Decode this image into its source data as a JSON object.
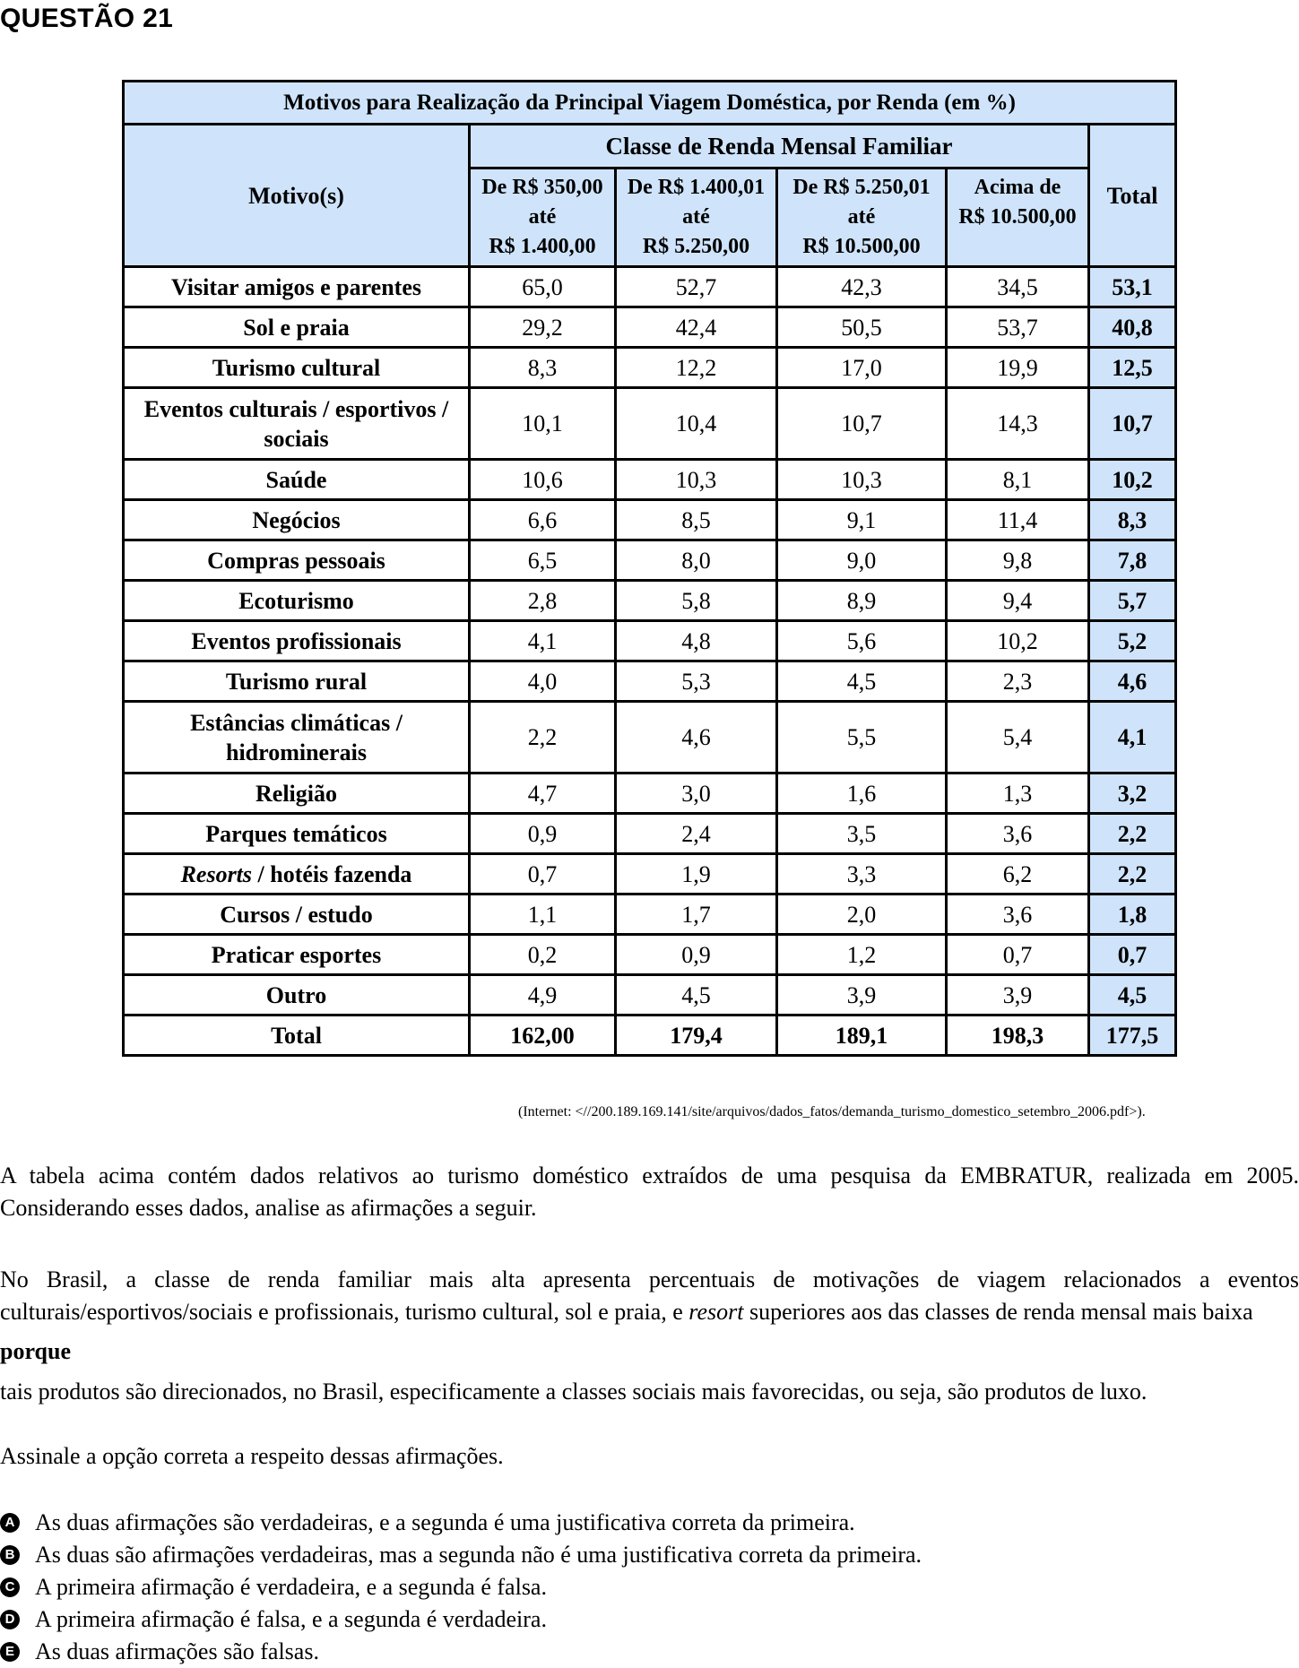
{
  "question_title": "QUESTÃO 21",
  "table": {
    "caption": "Motivos para Realização da Principal Viagem Doméstica, por Renda (em %)",
    "motive_header": "Motivo(s)",
    "group_header": "Classe de Renda Mensal Familiar",
    "total_header": "Total",
    "columns": [
      [
        "De R$ 350,00",
        "até",
        "R$ 1.400,00"
      ],
      [
        "De R$ 1.400,01",
        "até",
        "R$ 5.250,00"
      ],
      [
        "De R$ 5.250,01",
        "até",
        "R$ 10.500,00"
      ],
      [
        "Acima de",
        "R$ 10.500,00"
      ]
    ],
    "rows": [
      {
        "motive": "Visitar amigos e parentes",
        "values": [
          "65,0",
          "52,7",
          "42,3",
          "34,5"
        ],
        "total": "53,1"
      },
      {
        "motive": "Sol e praia",
        "values": [
          "29,2",
          "42,4",
          "50,5",
          "53,7"
        ],
        "total": "40,8"
      },
      {
        "motive": "Turismo cultural",
        "values": [
          "8,3",
          "12,2",
          "17,0",
          "19,9"
        ],
        "total": "12,5"
      },
      {
        "motive": "Eventos culturais / esportivos / sociais",
        "values": [
          "10,1",
          "10,4",
          "10,7",
          "14,3"
        ],
        "total": "10,7"
      },
      {
        "motive": "Saúde",
        "values": [
          "10,6",
          "10,3",
          "10,3",
          "8,1"
        ],
        "total": "10,2"
      },
      {
        "motive": "Negócios",
        "values": [
          "6,6",
          "8,5",
          "9,1",
          "11,4"
        ],
        "total": "8,3"
      },
      {
        "motive": "Compras pessoais",
        "values": [
          "6,5",
          "8,0",
          "9,0",
          "9,8"
        ],
        "total": "7,8"
      },
      {
        "motive": "Ecoturismo",
        "values": [
          "2,8",
          "5,8",
          "8,9",
          "9,4"
        ],
        "total": "5,7"
      },
      {
        "motive": "Eventos profissionais",
        "values": [
          "4,1",
          "4,8",
          "5,6",
          "10,2"
        ],
        "total": "5,2"
      },
      {
        "motive": "Turismo rural",
        "values": [
          "4,0",
          "5,3",
          "4,5",
          "2,3"
        ],
        "total": "4,6"
      },
      {
        "motive": "Estâncias climáticas / hidrominerais",
        "values": [
          "2,2",
          "4,6",
          "5,5",
          "5,4"
        ],
        "total": "4,1"
      },
      {
        "motive": "Religião",
        "values": [
          "4,7",
          "3,0",
          "1,6",
          "1,3"
        ],
        "total": "3,2"
      },
      {
        "motive": "Parques temáticos",
        "values": [
          "0,9",
          "2,4",
          "3,5",
          "3,6"
        ],
        "total": "2,2"
      },
      {
        "motive": "Resorts / hotéis fazenda",
        "values": [
          "0,7",
          "1,9",
          "3,3",
          "6,2"
        ],
        "total": "2,2"
      },
      {
        "motive": "Cursos / estudo",
        "values": [
          "1,1",
          "1,7",
          "2,0",
          "3,6"
        ],
        "total": "1,8"
      },
      {
        "motive": "Praticar esportes",
        "values": [
          "0,2",
          "0,9",
          "1,2",
          "0,7"
        ],
        "total": "0,7"
      },
      {
        "motive": "Outro",
        "values": [
          "4,9",
          "4,5",
          "3,9",
          "3,9"
        ],
        "total": "4,5"
      },
      {
        "motive": "Total",
        "values": [
          "162,00",
          "179,4",
          "189,1",
          "198,3"
        ],
        "total": "177,5"
      }
    ],
    "source": "(Internet: <//200.189.169.141/site/arquivos/dados_fatos/demanda_turismo_domestico_setembro_2006.pdf>)."
  },
  "intro": "A tabela acima contém dados relativos ao turismo doméstico extraídos de uma pesquisa da EMBRATUR, realizada em 2005. Considerando esses dados, analise as afirmações a seguir.",
  "statement1": {
    "before": "No Brasil, a classe de renda familiar mais alta apresenta percentuais de motivações de viagem relacionados a eventos culturais/esportivos/sociais e profissionais, turismo cultural, sol e praia, e ",
    "italic": "resort",
    "after": " superiores aos das classes de renda mensal mais baixa"
  },
  "connector": "porque",
  "statement2": "tais produtos são direcionados, no Brasil, especificamente a classes sociais mais favorecidas, ou seja, são produtos de luxo.",
  "instruction": "Assinale a opção correta a respeito dessas afirmações.",
  "options": [
    {
      "letter": "A",
      "text": "As duas afirmações são verdadeiras, e a segunda é uma justificativa correta da primeira."
    },
    {
      "letter": "B",
      "text": "As duas são afirmações verdadeiras, mas a segunda não é uma justificativa correta da primeira."
    },
    {
      "letter": "C",
      "text": "A primeira afirmação é verdadeira, e a segunda é falsa."
    },
    {
      "letter": "D",
      "text": "A primeira afirmação é falsa, e a segunda é verdadeira."
    },
    {
      "letter": "E",
      "text": "As duas afirmações são falsas."
    }
  ],
  "colors": {
    "header_fill": "#cfe4fb",
    "border": "#000000"
  }
}
